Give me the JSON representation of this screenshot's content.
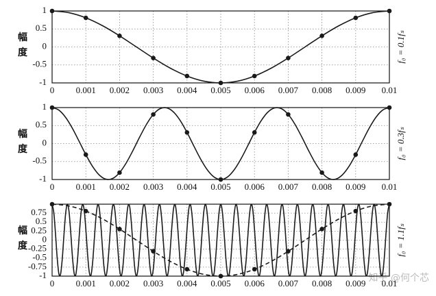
{
  "chart_data": [
    {
      "type": "line",
      "ylabel": "幅度",
      "side_label": "f₀ = 0.1fₛ",
      "xlim": [
        0,
        0.01
      ],
      "ylim": [
        -1,
        1
      ],
      "xticks": [
        0,
        0.001,
        0.002,
        0.003,
        0.004,
        0.005,
        0.006,
        0.007,
        0.008,
        0.009,
        0.01
      ],
      "yticks": [
        1,
        0.5,
        0,
        -0.5,
        -1
      ],
      "grid": true,
      "series": [
        {
          "color": "#1a1a1a",
          "dash": false,
          "line": true,
          "markers": false,
          "x": [
            0,
            0.0005,
            0.001,
            0.0015,
            0.002,
            0.0025,
            0.003,
            0.0035,
            0.004,
            0.0045,
            0.005,
            0.0055,
            0.006,
            0.0065,
            0.007,
            0.0075,
            0.008,
            0.0085,
            0.009,
            0.0095,
            0.01
          ],
          "values": [
            1,
            0.951,
            0.809,
            0.588,
            0.309,
            0,
            -0.309,
            -0.588,
            -0.809,
            -0.951,
            -1,
            -0.951,
            -0.809,
            -0.588,
            -0.309,
            0,
            0.309,
            0.588,
            0.809,
            0.951,
            1
          ]
        },
        {
          "color": "#1a1a1a",
          "line": false,
          "markers": true,
          "x": [
            0,
            0.001,
            0.002,
            0.003,
            0.004,
            0.005,
            0.006,
            0.007,
            0.008,
            0.009,
            0.01
          ],
          "values": [
            1,
            0.809,
            0.309,
            -0.309,
            -0.809,
            -1,
            -0.809,
            -0.309,
            0.309,
            0.809,
            1
          ]
        }
      ]
    },
    {
      "type": "line",
      "ylabel": "幅度",
      "side_label": "f₀ = 0.3fₛ",
      "xlim": [
        0,
        0.01
      ],
      "ylim": [
        -1,
        1
      ],
      "xticks": [
        0,
        0.001,
        0.002,
        0.003,
        0.004,
        0.005,
        0.006,
        0.007,
        0.008,
        0.009,
        0.01
      ],
      "yticks": [
        1,
        0.5,
        0,
        -0.5,
        -1
      ],
      "grid": true,
      "series": [
        {
          "color": "#1a1a1a",
          "dash": false,
          "line": true,
          "markers": false,
          "x": [
            0,
            0.0002,
            0.0004,
            0.0006,
            0.0008,
            0.001,
            0.0012,
            0.0014,
            0.0016,
            0.0018,
            0.002,
            0.0022,
            0.0024,
            0.0026,
            0.0028,
            0.003,
            0.0032,
            0.0034,
            0.0036,
            0.0038,
            0.004,
            0.0042,
            0.0044,
            0.0046,
            0.0048,
            0.005,
            0.0052,
            0.0054,
            0.0056,
            0.0058,
            0.006,
            0.0062,
            0.0064,
            0.0066,
            0.0068,
            0.007,
            0.0072,
            0.0074,
            0.0076,
            0.0078,
            0.008,
            0.0082,
            0.0084,
            0.0086,
            0.0088,
            0.009,
            0.0092,
            0.0094,
            0.0096,
            0.0098,
            0.01
          ],
          "values": [
            1,
            0.93,
            0.729,
            0.426,
            0.063,
            -0.309,
            -0.637,
            -0.876,
            -0.992,
            -0.969,
            -0.809,
            -0.536,
            -0.187,
            0.187,
            0.536,
            0.809,
            0.969,
            0.992,
            0.876,
            0.637,
            0.309,
            -0.063,
            -0.426,
            -0.729,
            -0.93,
            -1,
            -0.93,
            -0.729,
            -0.426,
            -0.063,
            0.309,
            0.637,
            0.876,
            0.992,
            0.969,
            0.809,
            0.536,
            0.187,
            -0.187,
            -0.536,
            -0.809,
            -0.969,
            -0.992,
            -0.876,
            -0.637,
            -0.309,
            0.063,
            0.426,
            0.729,
            0.93,
            1
          ]
        },
        {
          "color": "#1a1a1a",
          "line": false,
          "markers": true,
          "x": [
            0,
            0.001,
            0.002,
            0.003,
            0.004,
            0.005,
            0.006,
            0.007,
            0.008,
            0.009,
            0.01
          ],
          "values": [
            1,
            -0.309,
            -0.809,
            0.809,
            0.309,
            -1,
            0.309,
            0.809,
            -0.809,
            -0.309,
            1
          ]
        }
      ]
    },
    {
      "type": "line",
      "ylabel": "幅度",
      "side_label": "f₀ = 1.1fₛ",
      "xlim": [
        0,
        0.01
      ],
      "ylim": [
        -1,
        1
      ],
      "xticks": [
        0,
        0.001,
        0.002,
        0.003,
        0.004,
        0.005,
        0.006,
        0.007,
        0.008,
        0.009,
        0.01
      ],
      "yticks": [
        0.75,
        0.5,
        0.25,
        0,
        -0.25,
        -0.5,
        -0.75,
        -1
      ],
      "grid": true,
      "series": [
        {
          "color": "#1a1a1a",
          "dash": false,
          "line": true,
          "markers": false,
          "x": [
            0,
            5e-05,
            0.0001,
            0.00015,
            0.0002,
            0.00025,
            0.0003,
            0.00035,
            0.0004,
            0.00045,
            0.0005,
            0.00055,
            0.0006,
            0.00065,
            0.0007,
            0.00075,
            0.0008,
            0.00085,
            0.0009,
            0.00095,
            0.001,
            0.00105,
            0.0011,
            0.00115,
            0.0012,
            0.00125,
            0.0013,
            0.00135,
            0.0014,
            0.00145,
            0.0015,
            0.00155,
            0.0016,
            0.00165,
            0.0017,
            0.00175,
            0.0018,
            0.00185,
            0.0019,
            0.00195,
            0.002,
            0.00205,
            0.0021,
            0.00215,
            0.0022,
            0.00225,
            0.0023,
            0.00235,
            0.0024,
            0.00245,
            0.0025,
            0.00255,
            0.0026,
            0.00265,
            0.0027,
            0.00275,
            0.0028,
            0.00285,
            0.0029,
            0.00295,
            0.003,
            0.00305,
            0.0031,
            0.00315,
            0.0032,
            0.00325,
            0.0033,
            0.00335,
            0.0034,
            0.00345,
            0.0035,
            0.00355,
            0.0036,
            0.00365,
            0.0037,
            0.00375,
            0.0038,
            0.00385,
            0.0039,
            0.00395,
            0.004,
            0.00405,
            0.0041,
            0.00415,
            0.0042,
            0.00425,
            0.0043,
            0.00435,
            0.0044,
            0.00445,
            0.0045,
            0.00455,
            0.0046,
            0.00465,
            0.0047,
            0.00475,
            0.0048,
            0.00485,
            0.0049,
            0.00495,
            0.005,
            0.00505,
            0.0051,
            0.00515,
            0.0052,
            0.00525,
            0.0053,
            0.00535,
            0.0054,
            0.00545,
            0.0055,
            0.00555,
            0.0056,
            0.00565,
            0.0057,
            0.00575,
            0.0058,
            0.00585,
            0.0059,
            0.00595,
            0.006,
            0.00605,
            0.0061,
            0.00615,
            0.0062,
            0.00625,
            0.0063,
            0.00635,
            0.0064,
            0.00645,
            0.0065,
            0.00655,
            0.0066,
            0.00665,
            0.0067,
            0.00675,
            0.0068,
            0.00685,
            0.0069,
            0.00695,
            0.007,
            0.00705,
            0.0071,
            0.00715,
            0.0072,
            0.00725,
            0.0073,
            0.00735,
            0.0074,
            0.00745,
            0.0075,
            0.00755,
            0.0076,
            0.00765,
            0.0077,
            0.00775,
            0.0078,
            0.00785,
            0.0079,
            0.00795,
            0.008,
            0.00805,
            0.0081,
            0.00815,
            0.0082,
            0.00825,
            0.0083,
            0.00835,
            0.0084,
            0.00845,
            0.0085,
            0.00855,
            0.0086,
            0.00865,
            0.0087,
            0.00875,
            0.0088,
            0.00885,
            0.0089,
            0.00895,
            0.009,
            0.00905,
            0.0091,
            0.00915,
            0.0092,
            0.00925,
            0.0093,
            0.00935,
            0.0094,
            0.00945,
            0.0095,
            0.00955,
            0.0096,
            0.00965,
            0.0097,
            0.00975,
            0.0098,
            0.00985,
            0.0099,
            0.00995,
            0.01
          ],
          "values": [
            1,
            0.771,
            0.187,
            -0.482,
            -0.93,
            -0.951,
            -0.536,
            0.125,
            0.729,
            0.998,
            0.809,
            0.249,
            -0.426,
            -0.905,
            -0.969,
            -0.588,
            0.063,
            0.685,
            0.992,
            0.844,
            0.309,
            -0.368,
            -0.876,
            -0.982,
            -0.637,
            0,
            0.637,
            0.982,
            0.876,
            0.368,
            -0.309,
            -0.844,
            -0.992,
            -0.685,
            -0.063,
            0.588,
            0.969,
            0.905,
            0.426,
            -0.249,
            -0.809,
            -0.998,
            -0.729,
            -0.125,
            0.536,
            0.951,
            0.93,
            0.482,
            -0.187,
            -0.771,
            -1,
            -0.771,
            -0.187,
            0.482,
            0.93,
            0.951,
            0.536,
            -0.125,
            -0.729,
            -0.998,
            -0.809,
            -0.249,
            0.426,
            0.905,
            0.969,
            0.588,
            -0.063,
            -0.685,
            -0.992,
            -0.844,
            -0.309,
            0.368,
            0.876,
            0.982,
            0.637,
            0,
            -0.637,
            -0.982,
            -0.876,
            -0.368,
            0.309,
            0.844,
            0.992,
            0.685,
            0.063,
            -0.588,
            -0.969,
            -0.905,
            -0.426,
            0.249,
            0.809,
            0.998,
            0.729,
            0.125,
            -0.536,
            -0.951,
            -0.93,
            -0.482,
            0.187,
            0.771,
            1,
            0.771,
            0.187,
            -0.482,
            -0.93,
            -0.951,
            -0.536,
            0.125,
            0.729,
            0.998,
            0.809,
            0.249,
            -0.426,
            -0.905,
            -0.969,
            -0.588,
            0.063,
            0.685,
            0.992,
            0.844,
            0.309,
            -0.368,
            -0.876,
            -0.982,
            -0.637,
            0,
            0.637,
            0.982,
            0.876,
            0.368,
            -0.309,
            -0.844,
            -0.992,
            -0.685,
            -0.063,
            0.588,
            0.969,
            0.905,
            0.426,
            -0.249,
            -0.809,
            -0.998,
            -0.729,
            -0.125,
            0.536,
            0.951,
            0.93,
            0.482,
            -0.187,
            -0.771,
            -1,
            -0.771,
            -0.187,
            0.482,
            0.93,
            0.951,
            0.536,
            -0.125,
            -0.729,
            -0.998,
            -0.809,
            -0.249,
            0.426,
            0.905,
            0.969,
            0.588,
            -0.063,
            -0.685,
            -0.992,
            -0.844,
            -0.309,
            0.368,
            0.876,
            0.982,
            0.637,
            0,
            -0.637,
            -0.982,
            -0.876,
            -0.368,
            0.309,
            0.844,
            0.992,
            0.685,
            0.063,
            -0.588,
            -0.969,
            -0.905,
            -0.426,
            0.249,
            0.809,
            0.998,
            0.729,
            0.125,
            -0.536,
            -0.951,
            -0.93,
            -0.482,
            0.187,
            0.771,
            1
          ]
        },
        {
          "color": "#1a1a1a",
          "dash": true,
          "line": true,
          "markers": false,
          "x": [
            0,
            0.0005,
            0.001,
            0.0015,
            0.002,
            0.0025,
            0.003,
            0.0035,
            0.004,
            0.0045,
            0.005,
            0.0055,
            0.006,
            0.0065,
            0.007,
            0.0075,
            0.008,
            0.0085,
            0.009,
            0.0095,
            0.01
          ],
          "values": [
            1,
            0.951,
            0.809,
            0.588,
            0.309,
            0,
            -0.309,
            -0.588,
            -0.809,
            -0.951,
            -1,
            -0.951,
            -0.809,
            -0.588,
            -0.309,
            0,
            0.309,
            0.588,
            0.809,
            0.951,
            1
          ]
        },
        {
          "color": "#1a1a1a",
          "line": false,
          "markers": true,
          "x": [
            0,
            0.001,
            0.002,
            0.003,
            0.004,
            0.005,
            0.006,
            0.007,
            0.008,
            0.009,
            0.01
          ],
          "values": [
            1,
            0.809,
            0.309,
            -0.309,
            -0.809,
            -1,
            -0.809,
            -0.309,
            0.309,
            0.809,
            1
          ]
        }
      ]
    }
  ],
  "watermark": "知乎 @何个芯"
}
